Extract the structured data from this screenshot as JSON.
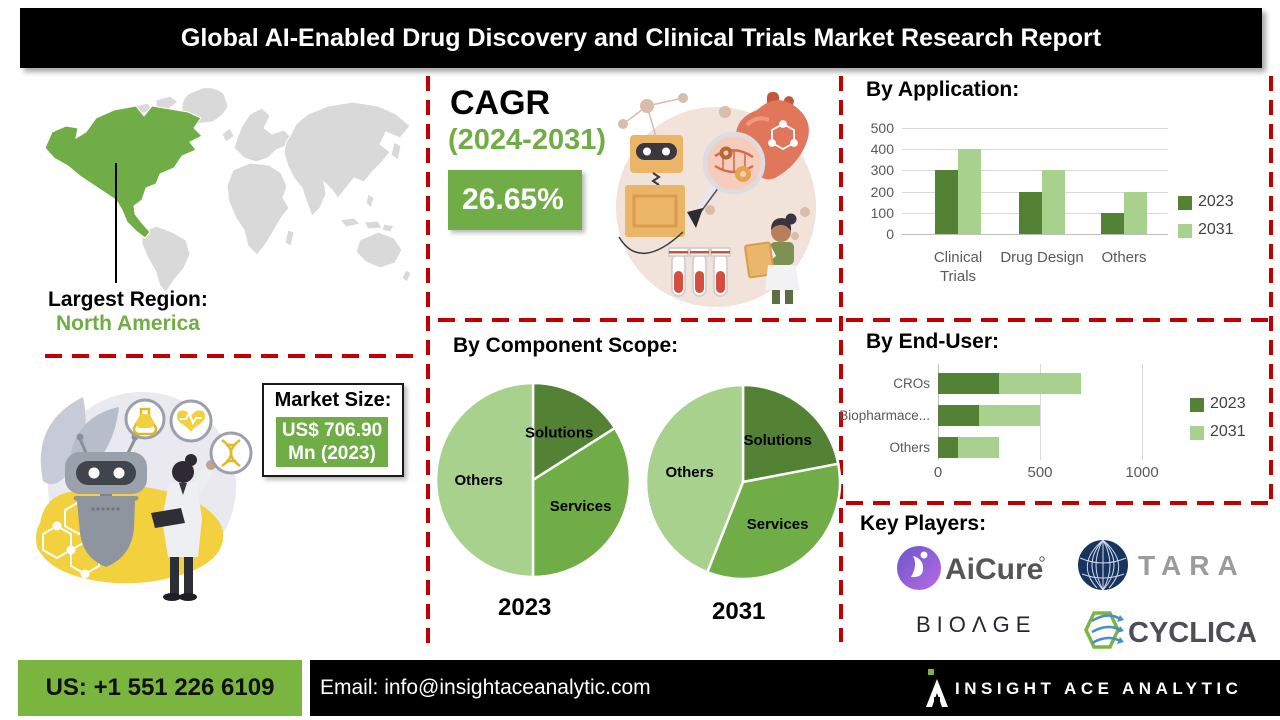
{
  "title": "Global AI-Enabled Drug Discovery and Clinical Trials Market Research Report",
  "colors": {
    "green": "#70AD47",
    "green_dark": "#548235",
    "green_light": "#A9D18E",
    "red": "#C00000",
    "banner_green": "#79B53F",
    "map_gray": "#d9d9d9"
  },
  "region": {
    "label": "Largest Region:",
    "value": "North America"
  },
  "market_size": {
    "label": "Market Size:",
    "value_line1": "US$ 706.90",
    "value_line2": "Mn (2023)"
  },
  "cagr": {
    "label": "CAGR",
    "period": "(2024-2031)",
    "value": "26.65%"
  },
  "chart_data": [
    {
      "name": "by_application",
      "type": "bar",
      "title": "By Application:",
      "categories": [
        "Clinical\nTrials",
        "Drug Design",
        "Others"
      ],
      "series": [
        {
          "name": "2023",
          "values": [
            300,
            200,
            100
          ],
          "color": "#548235"
        },
        {
          "name": "2031",
          "values": [
            400,
            300,
            200
          ],
          "color": "#A9D18E"
        }
      ],
      "ylim": [
        0,
        500
      ],
      "yticks": [
        0,
        100,
        200,
        300,
        400,
        500
      ],
      "grid": true,
      "legend_position": "right"
    },
    {
      "name": "by_component_scope",
      "type": "pie",
      "title": "By Component Scope:",
      "slice_colors": [
        "#548235",
        "#70AD47",
        "#A9D18E"
      ],
      "pies": [
        {
          "year": "2023",
          "labels": [
            "Solutions",
            "Services",
            "Others"
          ],
          "values": [
            16,
            34,
            50
          ]
        },
        {
          "year": "2031",
          "labels": [
            "Solutions",
            "Services",
            "Others"
          ],
          "values": [
            22,
            34,
            44
          ]
        }
      ]
    },
    {
      "name": "by_end_user",
      "type": "stacked_bar_horizontal",
      "title": "By End-User:",
      "categories": [
        "CROs",
        "Biopharmace...",
        "Others"
      ],
      "series": [
        {
          "name": "2023",
          "values": [
            300,
            200,
            100
          ],
          "color": "#548235"
        },
        {
          "name": "2031",
          "values": [
            400,
            300,
            200
          ],
          "color": "#A9D18E"
        }
      ],
      "xlim": [
        0,
        1500
      ],
      "xticks": [
        0,
        500,
        1000
      ],
      "grid": true,
      "legend_position": "right"
    }
  ],
  "key_players": {
    "title": "Key Players:",
    "names": [
      "AiCure",
      "TARA",
      "BIOAGE",
      "CYCLICA"
    ]
  },
  "footer": {
    "phone": "US: +1 551 226 6109",
    "email_label": "Email:",
    "email": "info@insightaceanalytic.com",
    "brand": "INSIGHT ACE ANALYTIC"
  }
}
